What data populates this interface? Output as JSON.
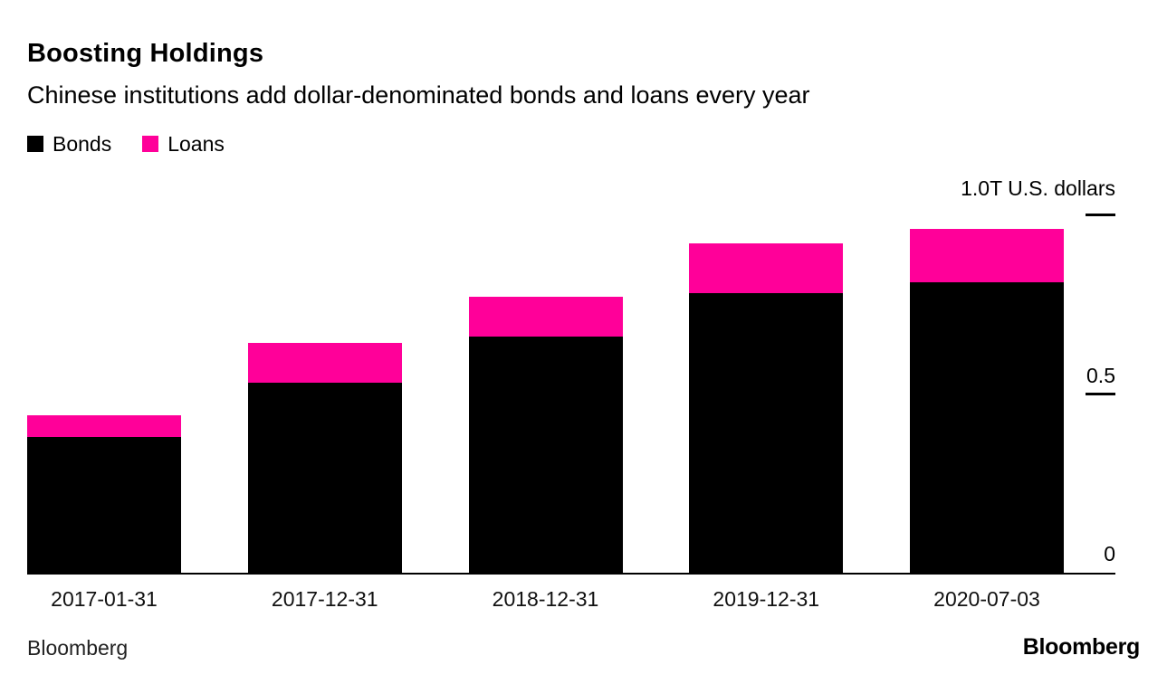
{
  "header": {
    "title": "Boosting Holdings",
    "subtitle": "Chinese institutions add dollar-denominated bonds and loans every year"
  },
  "legend": {
    "items": [
      {
        "label": "Bonds",
        "color": "#000000"
      },
      {
        "label": "Loans",
        "color": "#ff0099"
      }
    ]
  },
  "axis": {
    "top_label": "1.0T U.S. dollars",
    "mid_label": "0.5",
    "zero_label": "0"
  },
  "footer": {
    "source": "Bloomberg",
    "logo": "Bloomberg"
  },
  "chart_data": {
    "type": "bar",
    "stacked": true,
    "title": "Boosting Holdings",
    "subtitle": "Chinese institutions add dollar-denominated bonds and loans every year",
    "unit": "Trillion U.S. dollars",
    "categories": [
      "2017-01-31",
      "2017-12-31",
      "2018-12-31",
      "2019-12-31",
      "2020-07-03"
    ],
    "series": [
      {
        "name": "Bonds",
        "color": "#000000",
        "values": [
          0.38,
          0.53,
          0.66,
          0.78,
          0.81
        ]
      },
      {
        "name": "Loans",
        "color": "#ff0099",
        "values": [
          0.06,
          0.11,
          0.11,
          0.14,
          0.15
        ]
      }
    ],
    "xlabel": "",
    "ylabel": "1.0T U.S. dollars",
    "ylim": [
      0,
      1.0
    ],
    "yticks": [
      0,
      0.5,
      1.0
    ],
    "grid": false,
    "legend_position": "top-left",
    "source": "Bloomberg"
  }
}
